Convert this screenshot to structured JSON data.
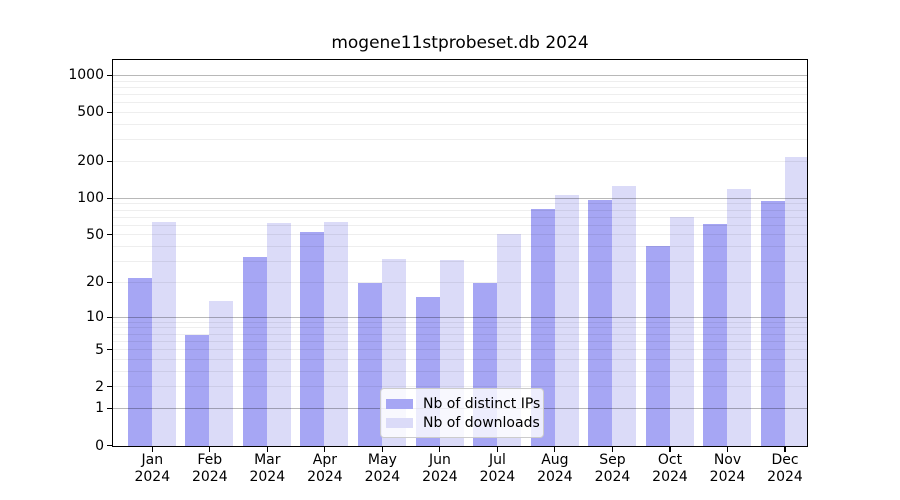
{
  "title": "mogene11stprobeset.db 2024",
  "chart_data": {
    "type": "bar",
    "title": "mogene11stprobeset.db 2024",
    "categories": [
      "Jan 2024",
      "Feb 2024",
      "Mar 2024",
      "Apr 2024",
      "May 2024",
      "Jun 2024",
      "Jul 2024",
      "Aug 2024",
      "Sep 2024",
      "Oct 2024",
      "Nov 2024",
      "Dec 2024"
    ],
    "series": [
      {
        "name": "Nb of distinct IPs",
        "color": "#a6a6f4",
        "values": [
          22,
          7,
          33,
          53,
          20,
          15,
          20,
          82,
          98,
          41,
          62,
          96
        ]
      },
      {
        "name": "Nb of downloads",
        "color": "#dbdbf8",
        "values": [
          64,
          14,
          63,
          64,
          32,
          31,
          51,
          108,
          126,
          71,
          120,
          220
        ]
      }
    ],
    "xlabel": "",
    "ylabel": "",
    "yscale": "log1p",
    "ylim": [
      0,
      1320
    ],
    "yticks": [
      0,
      1,
      2,
      5,
      10,
      20,
      50,
      100,
      200,
      500,
      1000
    ],
    "major_gridlines": [
      1,
      10,
      100,
      1000
    ],
    "minor_gridlines": [
      2,
      3,
      4,
      5,
      6,
      7,
      8,
      9,
      20,
      30,
      40,
      50,
      60,
      70,
      80,
      90,
      200,
      300,
      400,
      500,
      600,
      700,
      800,
      900
    ],
    "grid": true,
    "legend_position": "inside bottom-center"
  },
  "colors": {
    "background": "#ffffff",
    "spine": "#000000",
    "grid_major": "#b8b8b8",
    "grid_minor": "#eeeeee",
    "legend_border": "#cccccc",
    "legend_background": "rgba(255,255,255,0.8)"
  }
}
